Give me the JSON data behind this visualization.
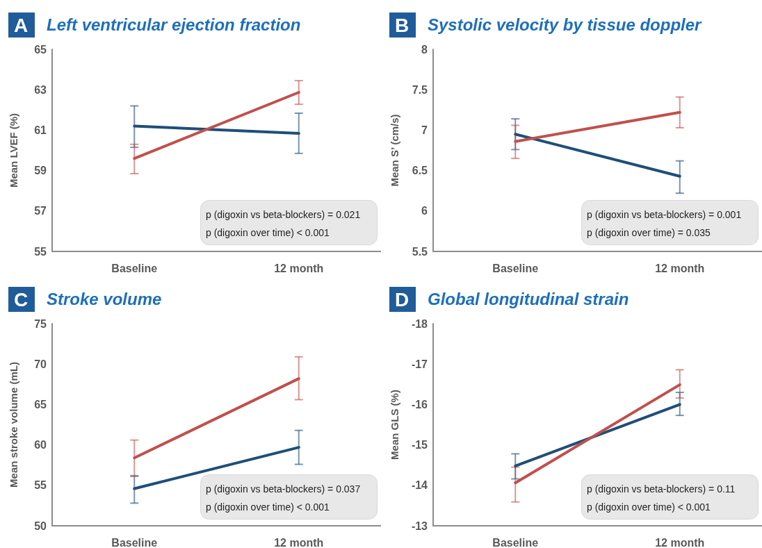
{
  "chart_data": [
    {
      "type": "line",
      "title": "Left ventricular ejection fraction",
      "ylabel": "Mean LVEF (%)",
      "categories": [
        "Baseline",
        "12 month"
      ],
      "ylim": [
        55,
        65
      ],
      "yticks": [
        55,
        57,
        59,
        61,
        63,
        65
      ],
      "marker": "none",
      "annotations": [
        "A",
        "p (digoxin vs beta-blockers) = 0.021",
        "p (digoxin over time) < 0.001"
      ],
      "series": [
        {
          "color": "#1f4e79",
          "values": [
            61.2,
            60.84
          ],
          "errors": [
            [
              60.15,
              62.2
            ],
            [
              59.85,
              61.84
            ]
          ]
        },
        {
          "color": "#c0504d",
          "values": [
            59.6,
            62.87
          ],
          "errors": [
            [
              58.85,
              60.3
            ],
            [
              62.28,
              63.45
            ]
          ]
        }
      ]
    },
    {
      "type": "line",
      "title": "Systolic velocity by tissue doppler",
      "ylabel": "Mean S’ (cm/s)",
      "categories": [
        "Baseline",
        "12 month"
      ],
      "ylim": [
        5.5,
        8
      ],
      "yticks": [
        5.5,
        6,
        6.5,
        7,
        7.5,
        8
      ],
      "marker": "none",
      "annotations": [
        "B",
        "p (digoxin vs beta-blockers) = 0.001",
        "p (digoxin over time) = 0.035"
      ],
      "series": [
        {
          "color": "#1f4e79",
          "values": [
            6.95,
            6.43
          ],
          "errors": [
            [
              6.76,
              7.14
            ],
            [
              6.22,
              6.62
            ]
          ]
        },
        {
          "color": "#c0504d",
          "values": [
            6.86,
            7.22
          ],
          "errors": [
            [
              6.65,
              7.06
            ],
            [
              7.03,
              7.41
            ]
          ]
        }
      ]
    },
    {
      "type": "line",
      "title": "Stroke volume",
      "ylabel": "Mean stroke volume (mL)",
      "categories": [
        "Baseline",
        "12 month"
      ],
      "ylim": [
        50,
        75
      ],
      "yticks": [
        50,
        55,
        60,
        65,
        70,
        75
      ],
      "marker": "none",
      "annotations": [
        "C",
        "p (digoxin vs beta-blockers) = 0.037",
        "p (digoxin over time) < 0.001"
      ],
      "series": [
        {
          "color": "#1f4e79",
          "values": [
            54.6,
            59.7
          ],
          "errors": [
            [
              52.8,
              56.2
            ],
            [
              57.6,
              61.8
            ]
          ]
        },
        {
          "color": "#c0504d",
          "values": [
            58.4,
            68.2
          ],
          "errors": [
            [
              56.1,
              60.6
            ],
            [
              65.6,
              70.9
            ]
          ]
        }
      ]
    },
    {
      "type": "line",
      "title": "Global longitudinal strain",
      "ylabel": "Mean GLS (%)",
      "categories": [
        "Baseline",
        "12 month"
      ],
      "ylim": [
        -13,
        -18
      ],
      "yticks": [
        -13,
        -14,
        -15,
        -16,
        -17,
        -18
      ],
      "marker": "none",
      "annotations": [
        "D",
        "p (digoxin vs beta-blockers) = 0.11",
        "p (digoxin over time) < 0.001"
      ],
      "series": [
        {
          "color": "#1f4e79",
          "values": [
            -14.48,
            -16.0
          ],
          "errors": [
            [
              -14.16,
              -14.78
            ],
            [
              -15.73,
              -16.3
            ]
          ]
        },
        {
          "color": "#c0504d",
          "values": [
            -14.06,
            -16.49
          ],
          "errors": [
            [
              -13.59,
              -14.45
            ],
            [
              -16.16,
              -16.86
            ]
          ]
        }
      ]
    }
  ]
}
